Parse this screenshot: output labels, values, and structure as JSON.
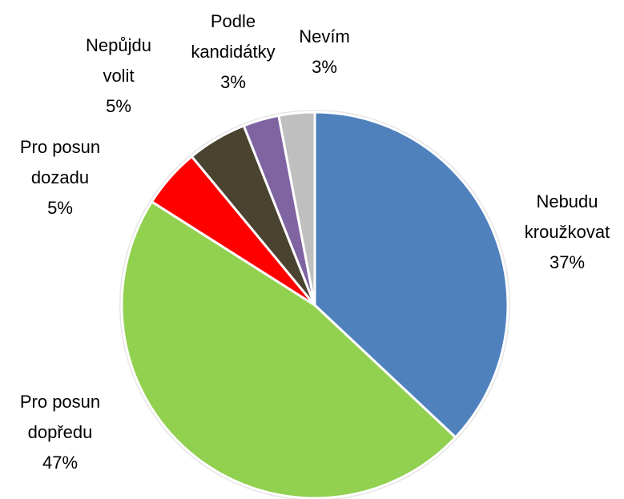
{
  "chart_data": {
    "type": "pie",
    "categories": [
      "Nebudu kroužkovat",
      "Pro posun dopředu",
      "Pro posun dozadu",
      "Nepůjdu volit",
      "Podle kandidátky",
      "Nevím"
    ],
    "values": [
      37,
      47,
      5,
      5,
      3,
      3
    ],
    "value_labels": [
      "37%",
      "47%",
      "5%",
      "5%",
      "3%",
      "3%"
    ],
    "colors": [
      "#4f81bd",
      "#92d050",
      "#ff0000",
      "#4a4330",
      "#8064a2",
      "#bfbfbf"
    ]
  }
}
